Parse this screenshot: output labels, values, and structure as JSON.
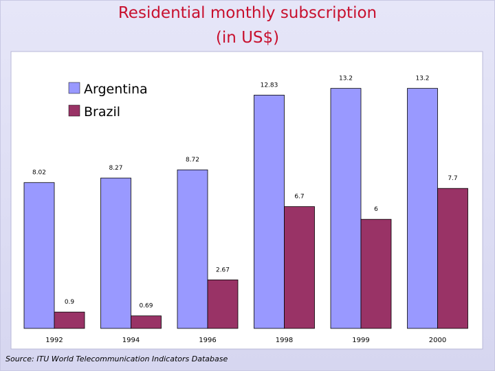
{
  "title": {
    "line1": "Residential monthly subscription",
    "line2": "(in US$)"
  },
  "source": "Source: ITU World Telecommunication Indicators Database",
  "colors": {
    "argentina": "#9999ff",
    "brazil": "#993366",
    "plot_bg": "#ffffff",
    "title": "#c8102e"
  },
  "chart_data": {
    "type": "bar",
    "title": "Residential monthly subscription (in US$)",
    "xlabel": "",
    "ylabel": "",
    "categories": [
      "1992",
      "1994",
      "1996",
      "1998",
      "1999",
      "2000"
    ],
    "series": [
      {
        "name": "Argentina",
        "values": [
          8.02,
          8.27,
          8.72,
          12.83,
          13.2,
          13.2
        ],
        "labels": [
          "8.02",
          "8.27",
          "8.72",
          "12.83",
          "13.2",
          "13.2"
        ]
      },
      {
        "name": "Brazil",
        "values": [
          0.9,
          0.69,
          2.67,
          6.7,
          6,
          7.7
        ],
        "labels": [
          "0.9",
          "0.69",
          "2.67",
          "6.7",
          "6",
          "7.7"
        ]
      }
    ],
    "ylim": [
      0,
      15
    ],
    "grid": false,
    "legend": "top-left",
    "data_labels": true
  }
}
